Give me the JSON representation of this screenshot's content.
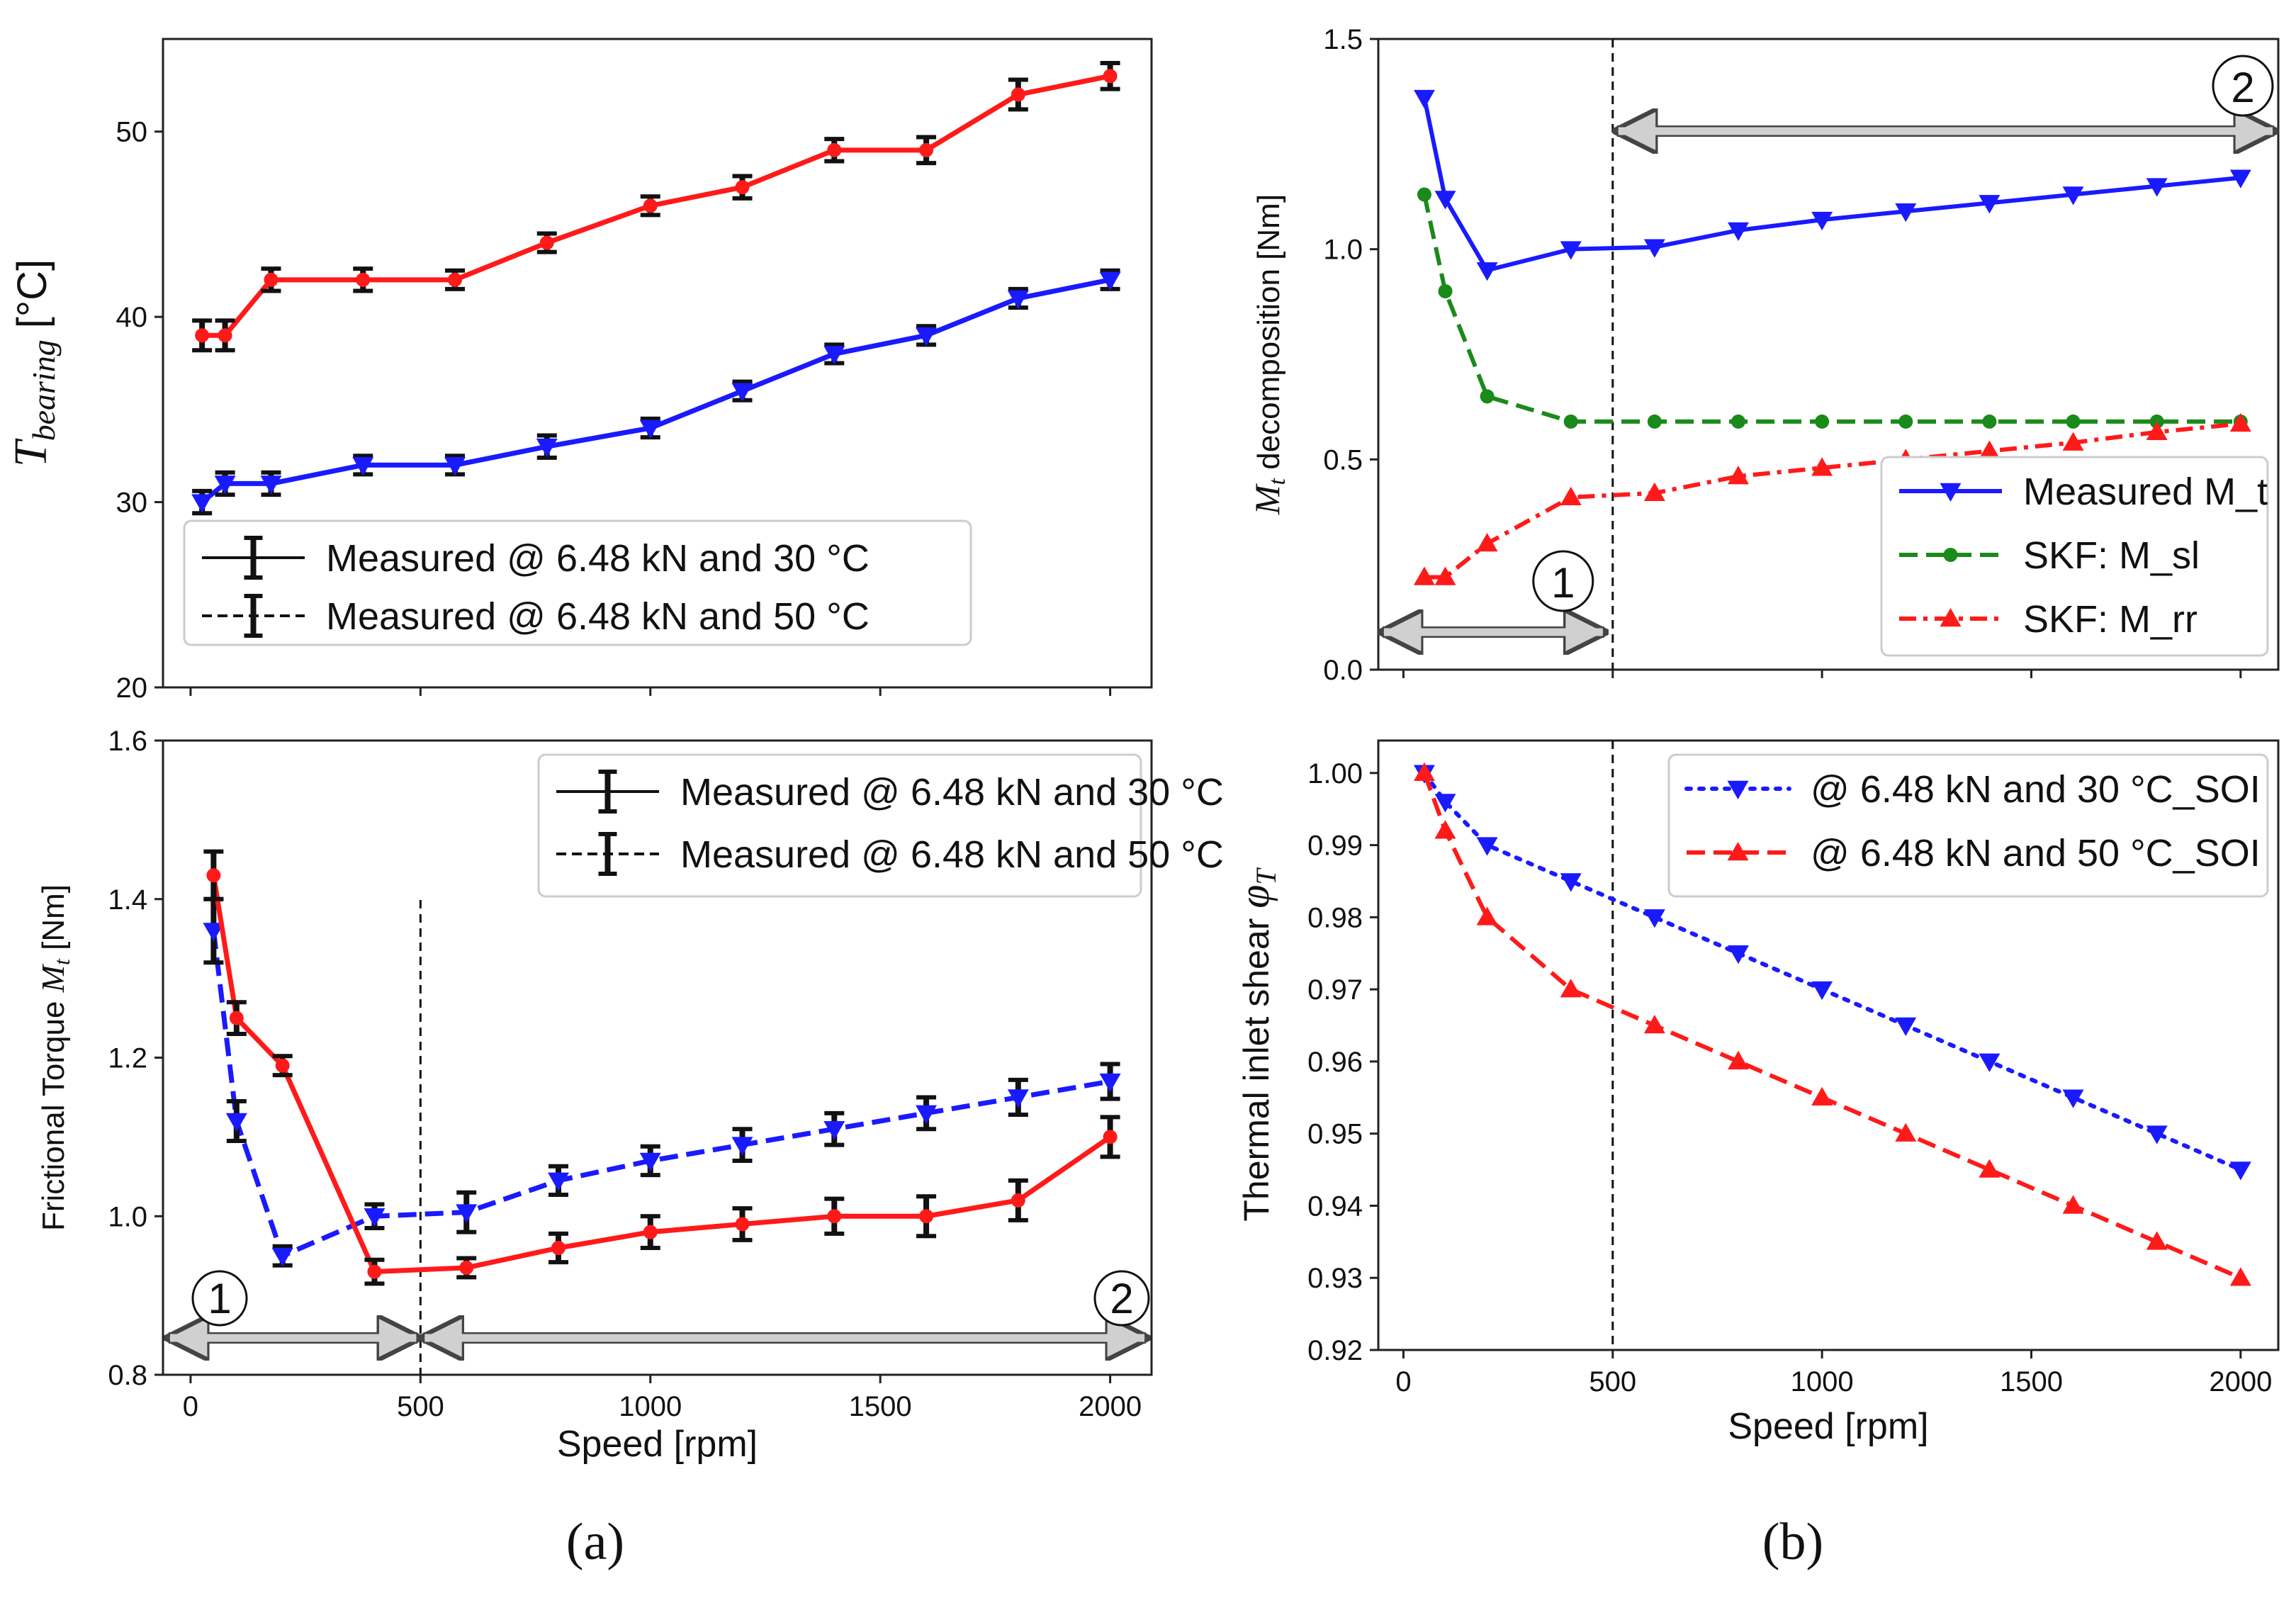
{
  "panel_labels": [
    "(a)",
    "(b)"
  ],
  "chart_data": [
    {
      "id": "a_top",
      "type": "line",
      "ylabel": "T_bearing [°C]",
      "ylabel_main": "T",
      "ylabel_sub": "bearing",
      "ylabel_unit": "[°C]",
      "xlabel": "",
      "xlim": [
        -60,
        2090
      ],
      "ylim": [
        20,
        55
      ],
      "xticks": [
        0,
        500,
        1000,
        1500,
        2000
      ],
      "xticklabels": [
        "",
        "",
        "",
        "",
        ""
      ],
      "yticks": [
        20,
        30,
        40,
        50
      ],
      "yticklabels": [
        "20",
        "30",
        "40",
        "50"
      ],
      "legend_position": "lower-left",
      "series": [
        {
          "name": "Measured @ 6.48 kN and 30 °C",
          "color": "#1a1aff",
          "line": "solid",
          "marker": "triangle-down",
          "x": [
            25,
            75,
            175,
            375,
            575,
            775,
            1000,
            1200,
            1400,
            1600,
            1800,
            2000
          ],
          "y": [
            30,
            31,
            31,
            32,
            32,
            33,
            34,
            36,
            38,
            39,
            41,
            42
          ],
          "err": [
            0.6,
            0.6,
            0.6,
            0.5,
            0.5,
            0.6,
            0.5,
            0.5,
            0.5,
            0.5,
            0.5,
            0.5
          ]
        },
        {
          "name": "Measured @ 6.48 kN and 50 °C",
          "color": "#ff1a1a",
          "line": "solid",
          "marker": "circle",
          "x": [
            25,
            75,
            175,
            375,
            575,
            775,
            1000,
            1200,
            1400,
            1600,
            1800,
            2000
          ],
          "y": [
            39,
            39,
            42,
            42,
            42,
            44,
            46,
            47,
            49,
            49,
            52,
            53
          ],
          "err": [
            0.8,
            0.8,
            0.6,
            0.6,
            0.5,
            0.5,
            0.5,
            0.6,
            0.6,
            0.7,
            0.8,
            0.7
          ]
        }
      ]
    },
    {
      "id": "a_bottom",
      "type": "line",
      "ylabel": "Frictional Torque M_t [Nm]",
      "ylabel_text": "Frictional Torque ",
      "ylabel_sym": "M",
      "ylabel_sub": "t",
      "ylabel_unit": " [Nm]",
      "xlabel": "Speed [rpm]",
      "xlim": [
        -60,
        2090
      ],
      "ylim": [
        0.8,
        1.6
      ],
      "xticks": [
        0,
        500,
        1000,
        1500,
        2000
      ],
      "xticklabels": [
        "0",
        "500",
        "1000",
        "1500",
        "2000"
      ],
      "yticks": [
        0.8,
        1.0,
        1.2,
        1.4,
        1.6
      ],
      "yticklabels": [
        "0.8",
        "1.0",
        "1.2",
        "1.4",
        "1.6"
      ],
      "vline": 500,
      "legend_position": "top-right",
      "regions": {
        "left_label": "1",
        "right_label": "2"
      },
      "series": [
        {
          "name": "Measured @ 6.48 kN and 30 °C",
          "color": "#1a1aff",
          "line": "dashed",
          "marker": "triangle-down",
          "x": [
            50,
            100,
            200,
            400,
            600,
            800,
            1000,
            1200,
            1400,
            1600,
            1800,
            2000
          ],
          "y": [
            1.36,
            1.12,
            0.95,
            1.0,
            1.005,
            1.045,
            1.07,
            1.09,
            1.11,
            1.13,
            1.15,
            1.17
          ],
          "err": [
            0.04,
            0.025,
            0.012,
            0.015,
            0.025,
            0.018,
            0.018,
            0.02,
            0.02,
            0.02,
            0.022,
            0.022
          ]
        },
        {
          "name": "Measured @ 6.48 kN and 50 °C",
          "color": "#ff1a1a",
          "line": "solid",
          "marker": "circle",
          "x": [
            50,
            100,
            200,
            400,
            600,
            800,
            1000,
            1200,
            1400,
            1600,
            1800,
            2000
          ],
          "y": [
            1.43,
            1.25,
            1.19,
            0.93,
            0.935,
            0.96,
            0.98,
            0.99,
            1.0,
            1.0,
            1.02,
            1.1
          ],
          "err": [
            0.03,
            0.02,
            0.012,
            0.015,
            0.012,
            0.018,
            0.02,
            0.02,
            0.022,
            0.025,
            0.025,
            0.025
          ]
        }
      ]
    },
    {
      "id": "b_top",
      "type": "line",
      "ylabel": "M_t decomposition [Nm]",
      "ylabel_sym": "M",
      "ylabel_sub": "t",
      "ylabel_text": " decomposition [Nm]",
      "xlabel": "",
      "xlim": [
        -60,
        2090
      ],
      "ylim": [
        0.0,
        1.5
      ],
      "xticks": [
        0,
        500,
        1000,
        1500,
        2000
      ],
      "xticklabels": [
        "",
        "",
        "",
        "",
        ""
      ],
      "yticks": [
        0.0,
        0.5,
        1.0,
        1.5
      ],
      "yticklabels": [
        "0.0",
        "0.5",
        "1.0",
        "1.5"
      ],
      "vline": 500,
      "legend_position": "lower-right",
      "regions": {
        "left_label": "1",
        "right_label": "2"
      },
      "series": [
        {
          "name": "Measured M_t",
          "color": "#1a1aff",
          "line": "solid",
          "marker": "triangle-down",
          "x": [
            50,
            100,
            200,
            400,
            600,
            800,
            1000,
            1200,
            1400,
            1600,
            1800,
            2000
          ],
          "y": [
            1.36,
            1.12,
            0.95,
            1.0,
            1.005,
            1.045,
            1.07,
            1.09,
            1.11,
            1.13,
            1.15,
            1.17
          ]
        },
        {
          "name": "SKF: M_sl",
          "color": "#1a8a1a",
          "line": "dashed",
          "marker": "circle",
          "x": [
            50,
            100,
            200,
            400,
            600,
            800,
            1000,
            1200,
            1400,
            1600,
            1800,
            2000
          ],
          "y": [
            1.13,
            0.9,
            0.65,
            0.59,
            0.59,
            0.59,
            0.59,
            0.59,
            0.59,
            0.59,
            0.59,
            0.59
          ]
        },
        {
          "name": "SKF: M_rr",
          "color": "#ff1a1a",
          "line": "dashdot",
          "marker": "triangle-up",
          "x": [
            50,
            100,
            200,
            400,
            600,
            800,
            1000,
            1200,
            1400,
            1600,
            1800,
            2000
          ],
          "y": [
            0.22,
            0.22,
            0.3,
            0.41,
            0.42,
            0.46,
            0.48,
            0.5,
            0.52,
            0.54,
            0.565,
            0.585
          ]
        }
      ]
    },
    {
      "id": "b_bottom",
      "type": "line",
      "ylabel": "Thermal inlet shear φ_T",
      "ylabel_text": "Thermal inlet shear ",
      "ylabel_sym": "φ",
      "ylabel_sub": "T",
      "xlabel": "Speed [rpm]",
      "xlim": [
        -60,
        2090
      ],
      "ylim": [
        0.92,
        1.0045
      ],
      "xticks": [
        0,
        500,
        1000,
        1500,
        2000
      ],
      "xticklabels": [
        "0",
        "500",
        "1000",
        "1500",
        "2000"
      ],
      "yticks": [
        0.92,
        0.93,
        0.94,
        0.95,
        0.96,
        0.97,
        0.98,
        0.99,
        1.0
      ],
      "yticklabels": [
        "0.92",
        "0.93",
        "0.94",
        "0.95",
        "0.96",
        "0.97",
        "0.98",
        "0.99",
        "1.00"
      ],
      "vline": 500,
      "legend_position": "top-right",
      "series": [
        {
          "name": "@ 6.48 kN and 30 °C_SOI",
          "color": "#1a1aff",
          "line": "dotted",
          "marker": "triangle-down",
          "x": [
            50,
            100,
            200,
            400,
            600,
            800,
            1000,
            1200,
            1400,
            1600,
            1800,
            2000
          ],
          "y": [
            1.0,
            0.996,
            0.99,
            0.985,
            0.98,
            0.975,
            0.97,
            0.965,
            0.96,
            0.955,
            0.95,
            0.945
          ]
        },
        {
          "name": "@ 6.48 kN and 50 °C_SOI",
          "color": "#ff1a1a",
          "line": "dashed",
          "marker": "triangle-up",
          "x": [
            50,
            100,
            200,
            400,
            600,
            800,
            1000,
            1200,
            1400,
            1600,
            1800,
            2000
          ],
          "y": [
            1.0,
            0.992,
            0.98,
            0.97,
            0.965,
            0.96,
            0.955,
            0.95,
            0.945,
            0.94,
            0.935,
            0.93
          ]
        }
      ]
    }
  ]
}
